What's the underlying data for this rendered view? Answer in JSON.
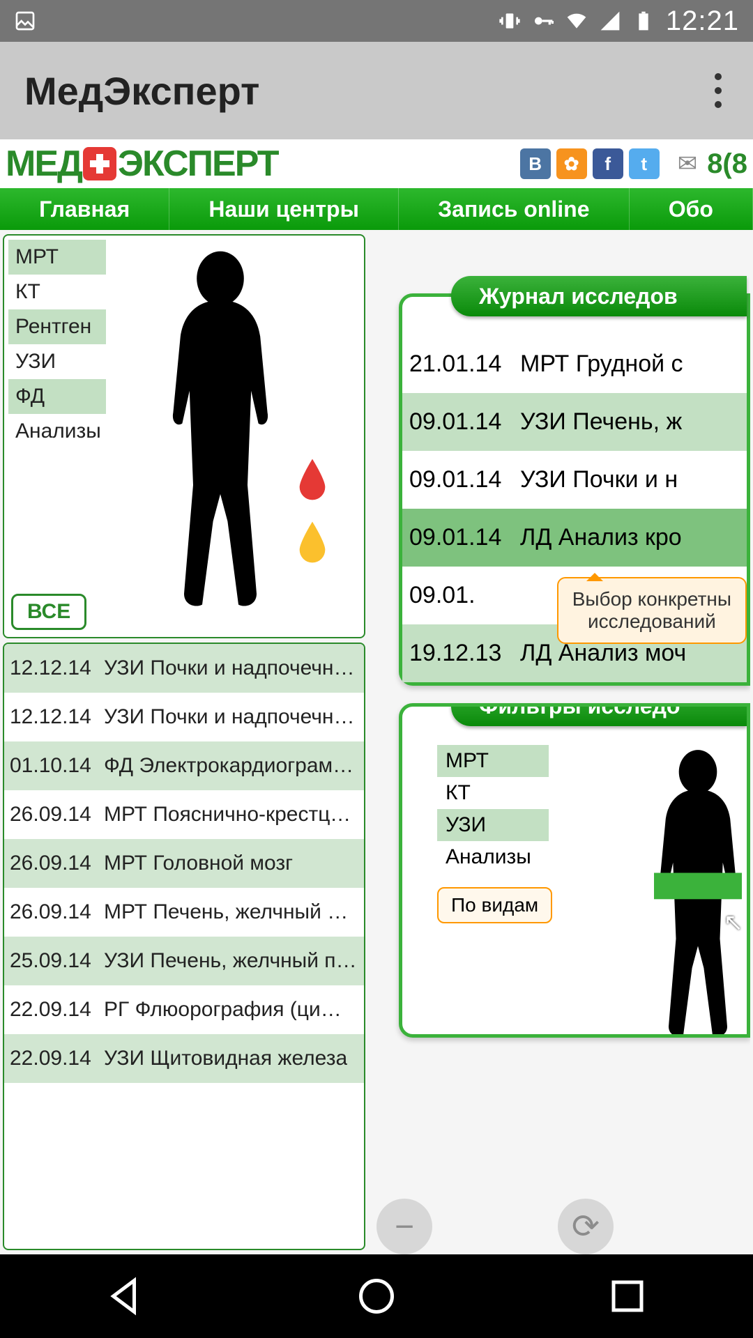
{
  "status": {
    "time": "12:21"
  },
  "app": {
    "title": "МедЭксперт"
  },
  "logo": {
    "part1": "МЕД",
    "part2": "ЭКСПЕРТ",
    "phone_partial": "8(8"
  },
  "social": {
    "vk_color": "#4c75a3",
    "ok_color": "#f7931e",
    "fb_color": "#3b5998",
    "tw_color": "#1da1f2"
  },
  "nav": {
    "tab1": "Главная",
    "tab2": "Наши центры",
    "tab3": "Запись online",
    "tab4": "Обо"
  },
  "filters": {
    "items": [
      {
        "label": "МРТ",
        "shaded": true
      },
      {
        "label": "КТ",
        "shaded": false
      },
      {
        "label": "Рентген",
        "shaded": true
      },
      {
        "label": "УЗИ",
        "shaded": false
      },
      {
        "label": "ФД",
        "shaded": true
      },
      {
        "label": "Анализы",
        "shaded": false
      }
    ],
    "all_btn": "ВСЕ"
  },
  "history": [
    {
      "date": "12.12.14",
      "label": "УЗИ Почки и надпочечни...",
      "shaded": true
    },
    {
      "date": "12.12.14",
      "label": "УЗИ Почки и надпочечни...",
      "shaded": false
    },
    {
      "date": "01.10.14",
      "label": "ФД Электрокардиограмм...",
      "shaded": true
    },
    {
      "date": "26.09.14",
      "label": "МРТ Пояснично-крестцов...",
      "shaded": false
    },
    {
      "date": "26.09.14",
      "label": "МРТ Головной мозг",
      "shaded": true
    },
    {
      "date": "26.09.14",
      "label": "МРТ Печень, желчный пу...",
      "shaded": false
    },
    {
      "date": "25.09.14",
      "label": "УЗИ Печень, желчный пуз...",
      "shaded": true
    },
    {
      "date": "22.09.14",
      "label": "РГ Флюорография (цифр...",
      "shaded": false
    },
    {
      "date": "22.09.14",
      "label": "УЗИ Щитовидная железа",
      "shaded": true
    }
  ],
  "journal": {
    "header": "Журнал исследов",
    "rows": [
      {
        "date": "21.01.14",
        "label": "МРТ Грудной с",
        "style": "plain"
      },
      {
        "date": "09.01.14",
        "label": "УЗИ Печень, ж",
        "style": "shade"
      },
      {
        "date": "09.01.14",
        "label": "УЗИ Почки и н",
        "style": "plain"
      },
      {
        "date": "09.01.14",
        "label": "ЛД Анализ кро",
        "style": "dark"
      },
      {
        "date": "09.01.",
        "label": "",
        "style": "plain"
      },
      {
        "date": "19.12.13",
        "label": "ЛД Анализ моч",
        "style": "shade"
      }
    ],
    "tooltip_line1": "Выбор конкретны",
    "tooltip_line2": "исследований"
  },
  "mini_filters": {
    "header": "Фильтры исследо",
    "items": [
      {
        "label": "МРТ",
        "shaded": true
      },
      {
        "label": "КТ",
        "shaded": false
      },
      {
        "label": "УЗИ",
        "shaded": true
      },
      {
        "label": "Анализы",
        "shaded": false
      }
    ],
    "type_btn": "По видам"
  },
  "colors": {
    "green_primary": "#2a8a2a",
    "green_light": "#c3e0c3",
    "green_med": "#7ec27e",
    "orange": "#ff9800",
    "red_drop": "#e53935",
    "orange_drop": "#fbc02d"
  }
}
